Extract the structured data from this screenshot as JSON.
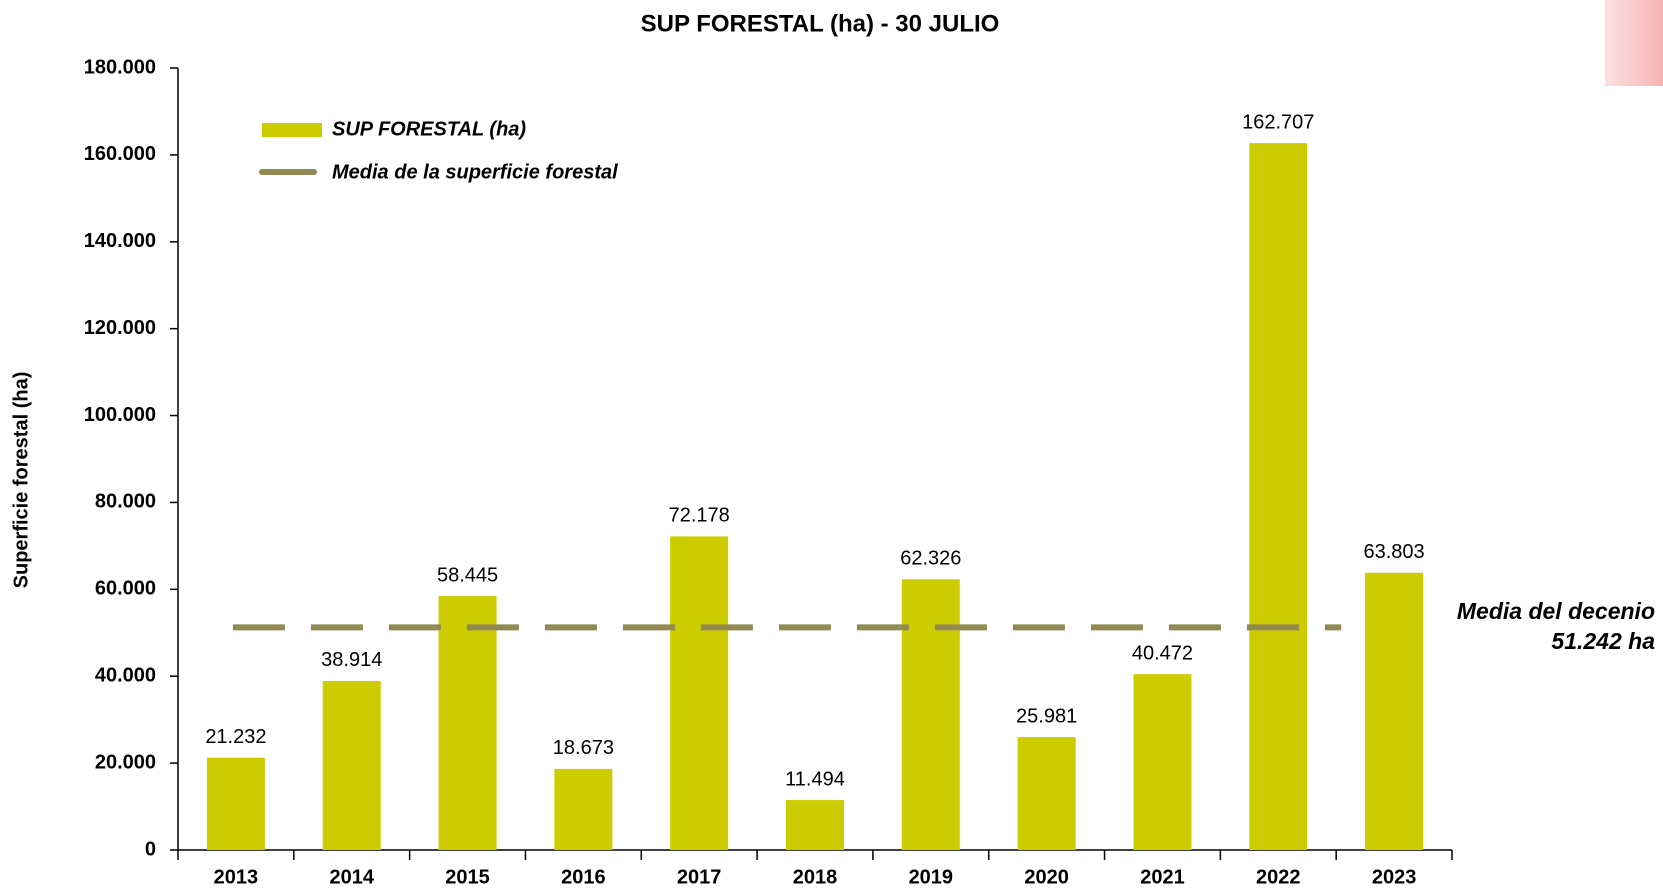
{
  "chart_data": {
    "type": "bar",
    "title": "SUP FORESTAL (ha) - 30 JULIO",
    "y_label": "Superficie forestal (ha)",
    "categories": [
      "2013",
      "2014",
      "2015",
      "2016",
      "2017",
      "2018",
      "2019",
      "2020",
      "2021",
      "2022",
      "2023"
    ],
    "series": [
      {
        "name": "SUP FORESTAL (ha)",
        "color": "#cccc00",
        "values": [
          21232,
          38914,
          58445,
          18673,
          72178,
          11494,
          62326,
          25981,
          40472,
          162707,
          63803
        ],
        "value_labels": [
          "21.232",
          "38.914",
          "58.445",
          "18.673",
          "72.178",
          "11.494",
          "62.326",
          "25.981",
          "40.472",
          "162.707",
          "63.803"
        ]
      }
    ],
    "mean_line": {
      "name": "Media de la superficie forestal",
      "color": "#938953",
      "value": 51242,
      "value_label": "51.242 ha",
      "annotation": "Media del decenio"
    },
    "ylim": [
      0,
      180000
    ],
    "yticks": [
      0,
      {
        "value": 20000,
        "label": "20.000"
      },
      {
        "value": 40000,
        "label": "40.000"
      },
      {
        "value": 60000,
        "label": "60.000"
      },
      {
        "value": 80000,
        "label": "80.000"
      },
      {
        "value": 100000,
        "label": "100.000"
      },
      {
        "value": 120000,
        "label": "120.000"
      },
      {
        "value": 140000,
        "label": "140.000"
      },
      {
        "value": 160000,
        "label": "160.000"
      },
      {
        "value": 180000,
        "label": "180.000"
      }
    ],
    "grid": false,
    "legend": "upper left"
  }
}
